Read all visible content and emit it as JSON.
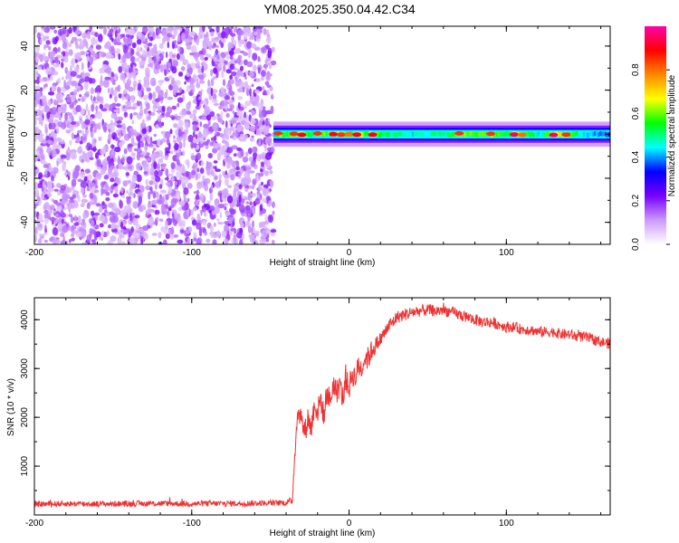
{
  "title": "YM08.2025.350.04.42.C34",
  "chart_data": [
    {
      "type": "heatmap",
      "title": "YM08.2025.350.04.42.C34",
      "xlabel": "Height of straight line (km)",
      "ylabel": "Frequency (Hz)",
      "xlim": [
        -200,
        166
      ],
      "ylim": [
        -50,
        49
      ],
      "x_ticks": [
        "-200",
        "-100",
        "0",
        "100"
      ],
      "y_ticks": [
        "40",
        "20",
        "0",
        "-20",
        "-40"
      ],
      "colorbar": {
        "label": "Normalized spectral amplitude",
        "range": [
          0,
          1
        ],
        "ticks": [
          "0.0",
          "0.2",
          "0.4",
          "0.6",
          "0.8"
        ],
        "colors": [
          "#ffffff",
          "#cc99ff",
          "#7700ff",
          "#0000ff",
          "#00ffff",
          "#00ff00",
          "#ffff00",
          "#ff8800",
          "#ff0000",
          "#ff00aa"
        ]
      },
      "noise_region": {
        "x": [
          -200,
          -48
        ],
        "amplitude": 0.15
      },
      "signal_band": {
        "x": [
          -48,
          166
        ],
        "center_freq": 0,
        "halfwidth_hz": 3,
        "profile": [
          {
            "x": -48,
            "peak": 0.55
          },
          {
            "x": -45,
            "peak": 0.85
          },
          {
            "x": -40,
            "peak": 0.7
          },
          {
            "x": -35,
            "peak": 0.85
          },
          {
            "x": -30,
            "peak": 0.9
          },
          {
            "x": -25,
            "peak": 0.7
          },
          {
            "x": -20,
            "peak": 0.85
          },
          {
            "x": -15,
            "peak": 0.75
          },
          {
            "x": -10,
            "peak": 0.9
          },
          {
            "x": -5,
            "peak": 0.85
          },
          {
            "x": 0,
            "peak": 0.8
          },
          {
            "x": 5,
            "peak": 0.9
          },
          {
            "x": 10,
            "peak": 0.75
          },
          {
            "x": 15,
            "peak": 0.9
          },
          {
            "x": 20,
            "peak": 0.7
          },
          {
            "x": 40,
            "peak": 0.6
          },
          {
            "x": 60,
            "peak": 0.65
          },
          {
            "x": 70,
            "peak": 0.85
          },
          {
            "x": 80,
            "peak": 0.75
          },
          {
            "x": 90,
            "peak": 0.85
          },
          {
            "x": 100,
            "peak": 0.7
          },
          {
            "x": 105,
            "peak": 0.95
          },
          {
            "x": 110,
            "peak": 0.8
          },
          {
            "x": 120,
            "peak": 0.6
          },
          {
            "x": 130,
            "peak": 0.95
          },
          {
            "x": 138,
            "peak": 0.85
          },
          {
            "x": 150,
            "peak": 0.55
          },
          {
            "x": 166,
            "peak": 0.5
          }
        ]
      }
    },
    {
      "type": "line",
      "xlabel": "Height of straight line (km)",
      "ylabel": "SNR (10 * v/v)",
      "xlim": [
        -200,
        166
      ],
      "ylim": [
        0,
        4450
      ],
      "x_ticks": [
        "-200",
        "-100",
        "0",
        "100"
      ],
      "y_ticks": [
        "4000",
        "3000",
        "2000",
        "1000"
      ],
      "color": "#ee3333",
      "series": [
        {
          "x": [
            -200,
            -180,
            -160,
            -140,
            -120,
            -100,
            -80,
            -60,
            -40,
            -36,
            -34,
            -32,
            -30,
            -28,
            -26,
            -24,
            -22,
            -20,
            -18,
            -16,
            -14,
            -12,
            -10,
            -8,
            -6,
            -4,
            -2,
            0,
            2,
            4,
            6,
            8,
            10,
            12,
            14,
            16,
            18,
            20,
            22,
            24,
            26,
            28,
            30,
            35,
            40,
            45,
            50,
            55,
            60,
            65,
            70,
            75,
            80,
            85,
            90,
            95,
            100,
            105,
            110,
            115,
            120,
            125,
            130,
            135,
            140,
            145,
            150,
            155,
            160,
            166
          ],
          "y": [
            220,
            230,
            225,
            230,
            235,
            230,
            235,
            240,
            250,
            300,
            1600,
            2200,
            1900,
            1700,
            2000,
            1750,
            2300,
            2100,
            2400,
            2000,
            2550,
            2300,
            2700,
            2500,
            2650,
            2400,
            2750,
            2600,
            2900,
            2800,
            3050,
            3000,
            3250,
            3200,
            3350,
            3450,
            3500,
            3600,
            3700,
            3800,
            3900,
            3950,
            4050,
            4100,
            4150,
            4180,
            4200,
            4180,
            4200,
            4150,
            4100,
            4050,
            4000,
            3950,
            3950,
            3900,
            3850,
            3850,
            3800,
            3800,
            3750,
            3750,
            3750,
            3700,
            3700,
            3650,
            3650,
            3600,
            3550,
            3500
          ],
          "noise": [
            60,
            60,
            60,
            60,
            60,
            60,
            60,
            60,
            60,
            80,
            250,
            250,
            250,
            250,
            250,
            250,
            250,
            250,
            250,
            250,
            250,
            250,
            250,
            250,
            250,
            250,
            250,
            250,
            250,
            250,
            250,
            250,
            250,
            250,
            220,
            200,
            180,
            160,
            150,
            150,
            150,
            150,
            130,
            130,
            130,
            120,
            120,
            120,
            120,
            120,
            120,
            120,
            120,
            120,
            120,
            110,
            110,
            110,
            110,
            110,
            110,
            110,
            110,
            110,
            110,
            110,
            110,
            110,
            110,
            110
          ]
        }
      ]
    }
  ]
}
